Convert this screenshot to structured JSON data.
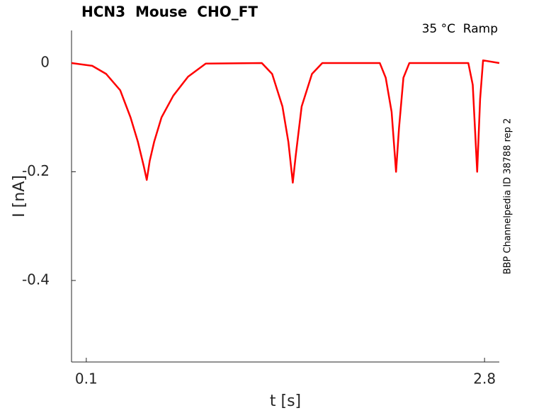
{
  "chart_data": {
    "type": "line",
    "title": "HCN3  Mouse  CHO_FT",
    "annotation": "35 °C  Ramp",
    "side_note": "BBP Channelpedia ID 38788 rep 2",
    "x_label": "t [s]",
    "y_label": "I [nA]",
    "xlim": [
      0,
      2.9
    ],
    "ylim": [
      -0.55,
      0.06
    ],
    "xticks": [
      0.1,
      2.8
    ],
    "yticks": [
      0,
      -0.2,
      -0.4
    ],
    "series": [
      {
        "color": "#ff0000",
        "x": [
          0,
          0.14,
          0.235,
          0.33,
          0.4,
          0.45,
          0.49,
          0.51,
          0.53,
          0.56,
          0.61,
          0.69,
          0.79,
          0.91,
          1.29,
          1.36,
          1.43,
          1.47,
          1.5,
          1.52,
          1.56,
          1.63,
          1.7,
          2.09,
          2.13,
          2.17,
          2.2,
          2.22,
          2.25,
          2.29,
          2.69,
          2.72,
          2.75,
          2.77,
          2.79,
          2.9
        ],
        "values": [
          0,
          -0.005,
          -0.02,
          -0.05,
          -0.1,
          -0.145,
          -0.19,
          -0.215,
          -0.18,
          -0.145,
          -0.1,
          -0.06,
          -0.025,
          -0.001,
          0,
          -0.02,
          -0.08,
          -0.145,
          -0.22,
          -0.17,
          -0.08,
          -0.02,
          0,
          0,
          -0.027,
          -0.09,
          -0.2,
          -0.12,
          -0.027,
          0,
          0,
          -0.04,
          -0.2,
          -0.066,
          0.005,
          0
        ]
      }
    ]
  }
}
